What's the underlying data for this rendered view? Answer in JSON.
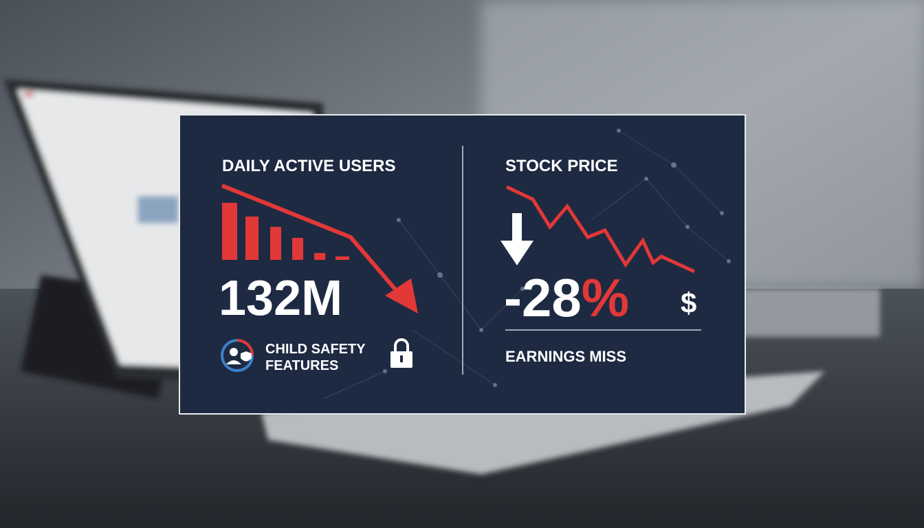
{
  "left_panel": {
    "title": "DAILY ACTIVE USERS",
    "metric": "132M",
    "feature_line1": "CHILD SAFETY",
    "feature_line2": "FEATURES"
  },
  "right_panel": {
    "title": "STOCK PRICE",
    "metric_number": "-28",
    "metric_unit": "%",
    "currency_symbol": "$",
    "caption": "EARNINGS MISS"
  }
}
